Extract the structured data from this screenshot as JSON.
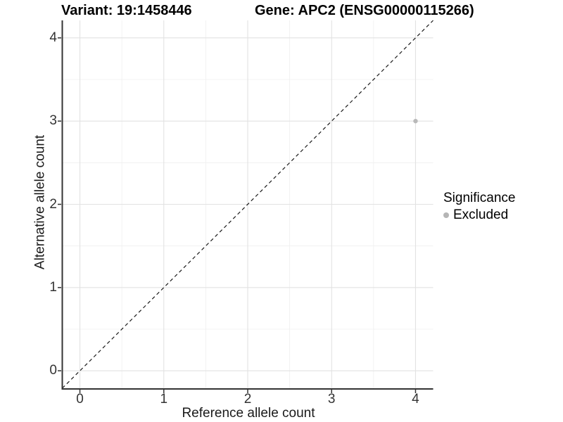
{
  "titles": {
    "variant": "Variant: 19:1458446",
    "gene": "Gene: APC2 (ENSG00000115266)"
  },
  "chart_data": {
    "type": "scatter",
    "title_left": "Variant: 19:1458446",
    "title_right": "Gene: APC2 (ENSG00000115266)",
    "xlabel": "Reference allele count",
    "ylabel": "Alternative allele count",
    "xlim": [
      -0.21,
      4.21
    ],
    "ylim": [
      -0.21,
      4.21
    ],
    "x_ticks": [
      0,
      1,
      2,
      3,
      4
    ],
    "y_ticks": [
      0,
      1,
      2,
      3,
      4
    ],
    "x_minor_ticks": [
      0.5,
      1.5,
      2.5,
      3.5
    ],
    "y_minor_ticks": [
      0.5,
      1.5,
      2.5,
      3.5
    ],
    "grid": "major-and-minor",
    "points": [
      {
        "x": 4,
        "y": 3,
        "series": "Excluded"
      }
    ],
    "identity_line": {
      "style": "dashed",
      "from": [
        -0.21,
        -0.21
      ],
      "to": [
        4.21,
        4.21
      ]
    },
    "legend": {
      "title": "Significance",
      "position": "right",
      "items": [
        {
          "label": "Excluded",
          "color": "#b5b5b5"
        }
      ]
    }
  },
  "colors": {
    "point": "#b9b9b9",
    "grid_major": "#e2e2e2",
    "grid_minor": "#efefef",
    "axis_line": "#333333",
    "dashed_line": "#1a1a1a",
    "tick_text": "#333333",
    "title_text": "#000000"
  }
}
